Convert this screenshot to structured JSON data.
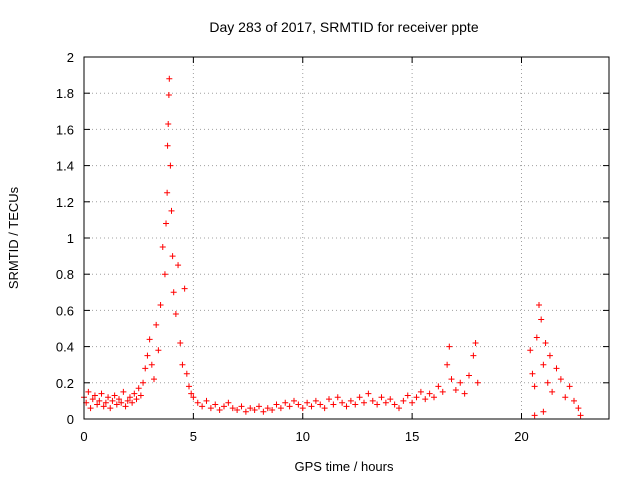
{
  "chart_data": {
    "type": "scatter",
    "title": "Day 283 of 2017, SRMTID for receiver ppte",
    "xlabel": "GPS time / hours",
    "ylabel": "SRMTID / TECUs",
    "xlim": [
      0,
      24
    ],
    "ylim": [
      0,
      2
    ],
    "grid": true,
    "marker": "plus",
    "color": "#ff0000",
    "x_ticks": [
      0,
      5,
      10,
      15,
      20
    ],
    "x_tick_labels": [
      "0",
      "5",
      "10",
      "15",
      "20"
    ],
    "y_ticks": [
      0,
      0.2,
      0.4,
      0.6,
      0.8,
      1,
      1.2,
      1.4,
      1.6,
      1.8,
      2
    ],
    "y_tick_labels": [
      "0",
      "0.2",
      "0.4",
      "0.6",
      "0.8",
      "1",
      "1.2",
      "1.4",
      "1.6",
      "1.8",
      "2"
    ],
    "series": [
      {
        "name": "SRMTID",
        "points": [
          [
            0.0,
            0.12
          ],
          [
            0.1,
            0.09
          ],
          [
            0.2,
            0.15
          ],
          [
            0.3,
            0.06
          ],
          [
            0.4,
            0.11
          ],
          [
            0.5,
            0.13
          ],
          [
            0.6,
            0.08
          ],
          [
            0.7,
            0.1
          ],
          [
            0.8,
            0.14
          ],
          [
            0.9,
            0.07
          ],
          [
            1.0,
            0.09
          ],
          [
            1.1,
            0.12
          ],
          [
            1.2,
            0.06
          ],
          [
            1.3,
            0.1
          ],
          [
            1.4,
            0.13
          ],
          [
            1.5,
            0.08
          ],
          [
            1.6,
            0.11
          ],
          [
            1.7,
            0.09
          ],
          [
            1.8,
            0.15
          ],
          [
            1.9,
            0.07
          ],
          [
            2.0,
            0.1
          ],
          [
            2.1,
            0.12
          ],
          [
            2.2,
            0.09
          ],
          [
            2.3,
            0.14
          ],
          [
            2.4,
            0.11
          ],
          [
            2.5,
            0.17
          ],
          [
            2.6,
            0.13
          ],
          [
            2.7,
            0.2
          ],
          [
            2.8,
            0.28
          ],
          [
            2.9,
            0.35
          ],
          [
            3.0,
            0.44
          ],
          [
            3.1,
            0.3
          ],
          [
            3.2,
            0.22
          ],
          [
            3.3,
            0.52
          ],
          [
            3.4,
            0.38
          ],
          [
            3.5,
            0.63
          ],
          [
            3.6,
            0.95
          ],
          [
            3.7,
            0.8
          ],
          [
            3.75,
            1.08
          ],
          [
            3.8,
            1.25
          ],
          [
            3.82,
            1.51
          ],
          [
            3.85,
            1.63
          ],
          [
            3.88,
            1.79
          ],
          [
            3.9,
            1.88
          ],
          [
            3.95,
            1.4
          ],
          [
            4.0,
            1.15
          ],
          [
            4.05,
            0.9
          ],
          [
            4.1,
            0.7
          ],
          [
            4.2,
            0.58
          ],
          [
            4.3,
            0.85
          ],
          [
            4.4,
            0.42
          ],
          [
            4.5,
            0.3
          ],
          [
            4.6,
            0.72
          ],
          [
            4.7,
            0.25
          ],
          [
            4.8,
            0.18
          ],
          [
            4.9,
            0.14
          ],
          [
            5.0,
            0.12
          ],
          [
            5.2,
            0.09
          ],
          [
            5.4,
            0.07
          ],
          [
            5.6,
            0.1
          ],
          [
            5.8,
            0.06
          ],
          [
            6.0,
            0.08
          ],
          [
            6.2,
            0.05
          ],
          [
            6.4,
            0.07
          ],
          [
            6.6,
            0.09
          ],
          [
            6.8,
            0.06
          ],
          [
            7.0,
            0.05
          ],
          [
            7.2,
            0.07
          ],
          [
            7.4,
            0.04
          ],
          [
            7.6,
            0.06
          ],
          [
            7.8,
            0.05
          ],
          [
            8.0,
            0.07
          ],
          [
            8.2,
            0.04
          ],
          [
            8.4,
            0.06
          ],
          [
            8.6,
            0.05
          ],
          [
            8.8,
            0.08
          ],
          [
            9.0,
            0.06
          ],
          [
            9.2,
            0.09
          ],
          [
            9.4,
            0.07
          ],
          [
            9.6,
            0.1
          ],
          [
            9.8,
            0.08
          ],
          [
            10.0,
            0.06
          ],
          [
            10.2,
            0.09
          ],
          [
            10.4,
            0.07
          ],
          [
            10.6,
            0.1
          ],
          [
            10.8,
            0.08
          ],
          [
            11.0,
            0.06
          ],
          [
            11.2,
            0.11
          ],
          [
            11.4,
            0.08
          ],
          [
            11.6,
            0.12
          ],
          [
            11.8,
            0.09
          ],
          [
            12.0,
            0.07
          ],
          [
            12.2,
            0.1
          ],
          [
            12.4,
            0.08
          ],
          [
            12.6,
            0.12
          ],
          [
            12.8,
            0.09
          ],
          [
            13.0,
            0.14
          ],
          [
            13.2,
            0.1
          ],
          [
            13.4,
            0.08
          ],
          [
            13.6,
            0.12
          ],
          [
            13.8,
            0.09
          ],
          [
            14.0,
            0.11
          ],
          [
            14.2,
            0.08
          ],
          [
            14.4,
            0.06
          ],
          [
            14.6,
            0.1
          ],
          [
            14.8,
            0.13
          ],
          [
            15.0,
            0.09
          ],
          [
            15.2,
            0.12
          ],
          [
            15.4,
            0.15
          ],
          [
            15.6,
            0.11
          ],
          [
            15.8,
            0.14
          ],
          [
            16.0,
            0.12
          ],
          [
            16.2,
            0.18
          ],
          [
            16.4,
            0.15
          ],
          [
            16.6,
            0.3
          ],
          [
            16.7,
            0.4
          ],
          [
            16.8,
            0.22
          ],
          [
            17.0,
            0.16
          ],
          [
            17.2,
            0.2
          ],
          [
            17.4,
            0.14
          ],
          [
            17.6,
            0.24
          ],
          [
            17.8,
            0.35
          ],
          [
            17.9,
            0.42
          ],
          [
            18.0,
            0.2
          ],
          [
            20.4,
            0.38
          ],
          [
            20.5,
            0.25
          ],
          [
            20.6,
            0.18
          ],
          [
            20.7,
            0.45
          ],
          [
            20.8,
            0.63
          ],
          [
            20.9,
            0.55
          ],
          [
            21.0,
            0.3
          ],
          [
            21.1,
            0.42
          ],
          [
            21.2,
            0.2
          ],
          [
            21.3,
            0.35
          ],
          [
            21.4,
            0.15
          ],
          [
            21.6,
            0.28
          ],
          [
            21.8,
            0.22
          ],
          [
            22.0,
            0.12
          ],
          [
            22.2,
            0.18
          ],
          [
            22.4,
            0.1
          ],
          [
            22.6,
            0.06
          ],
          [
            22.7,
            0.02
          ],
          [
            20.6,
            0.02
          ],
          [
            21.0,
            0.04
          ]
        ]
      }
    ]
  }
}
